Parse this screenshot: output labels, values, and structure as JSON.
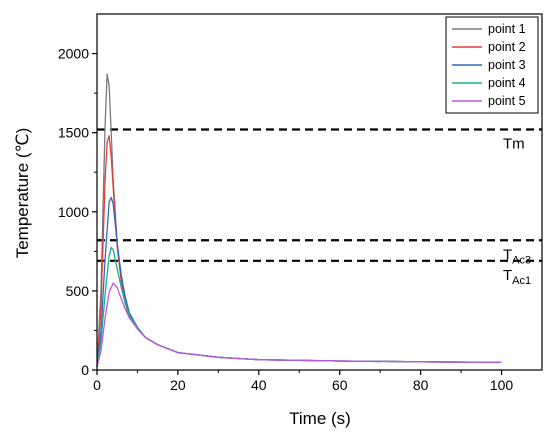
{
  "chart_data": {
    "type": "line",
    "title": "",
    "xlabel": "Time (s)",
    "ylabel": "Temperature (℃)",
    "xlim": [
      0,
      110
    ],
    "ylim": [
      0,
      2250
    ],
    "xticks": [
      "0",
      "20",
      "40",
      "60",
      "80",
      "100"
    ],
    "yticks": [
      "0",
      "500",
      "1000",
      "1500",
      "2000"
    ],
    "legend_position": "top-right",
    "grid": false,
    "series": [
      {
        "name": "point 1",
        "color": "#7a7a7a",
        "x": [
          0,
          1,
          2,
          2.5,
          3,
          3.5,
          4,
          5,
          6,
          7,
          8,
          10,
          12,
          15,
          20,
          30,
          40,
          60,
          80,
          100
        ],
        "y": [
          20,
          500,
          1550,
          1870,
          1800,
          1500,
          1200,
          800,
          560,
          420,
          330,
          260,
          205,
          160,
          110,
          80,
          65,
          57,
          52,
          48
        ]
      },
      {
        "name": "point 2",
        "color": "#e0403c",
        "x": [
          0,
          1,
          2,
          2.5,
          3,
          3.5,
          4,
          5,
          6,
          7,
          8,
          10,
          12,
          15,
          20,
          30,
          40,
          60,
          80,
          100
        ],
        "y": [
          20,
          400,
          1200,
          1440,
          1480,
          1350,
          1150,
          780,
          560,
          430,
          340,
          265,
          205,
          160,
          110,
          80,
          65,
          57,
          52,
          48
        ]
      },
      {
        "name": "point 3",
        "color": "#2d6bbf",
        "x": [
          0,
          1,
          2,
          3,
          3.5,
          4,
          5,
          6,
          7,
          8,
          10,
          12,
          15,
          20,
          30,
          40,
          60,
          80,
          100
        ],
        "y": [
          20,
          250,
          700,
          1060,
          1090,
          1050,
          800,
          600,
          460,
          360,
          270,
          205,
          160,
          110,
          80,
          65,
          57,
          52,
          48
        ]
      },
      {
        "name": "point 4",
        "color": "#17b08a",
        "x": [
          0,
          1,
          2,
          3,
          3.5,
          4,
          5,
          6,
          7,
          8,
          10,
          12,
          15,
          20,
          30,
          40,
          60,
          80,
          100
        ],
        "y": [
          20,
          180,
          480,
          720,
          775,
          760,
          640,
          520,
          420,
          345,
          265,
          205,
          160,
          110,
          80,
          65,
          57,
          52,
          48
        ]
      },
      {
        "name": "point 5",
        "color": "#c057e0",
        "x": [
          0,
          1,
          2,
          3,
          4,
          5,
          6,
          7,
          8,
          10,
          12,
          15,
          20,
          30,
          40,
          60,
          80,
          100
        ],
        "y": [
          20,
          120,
          330,
          490,
          550,
          520,
          450,
          385,
          330,
          260,
          205,
          160,
          110,
          80,
          65,
          57,
          52,
          48
        ]
      }
    ],
    "reference_lines": [
      {
        "label": "Tm",
        "sub": "",
        "y": 1520
      },
      {
        "label": "T",
        "sub": "Ac3",
        "y": 820
      },
      {
        "label": "T",
        "sub": "Ac1",
        "y": 690
      }
    ]
  }
}
